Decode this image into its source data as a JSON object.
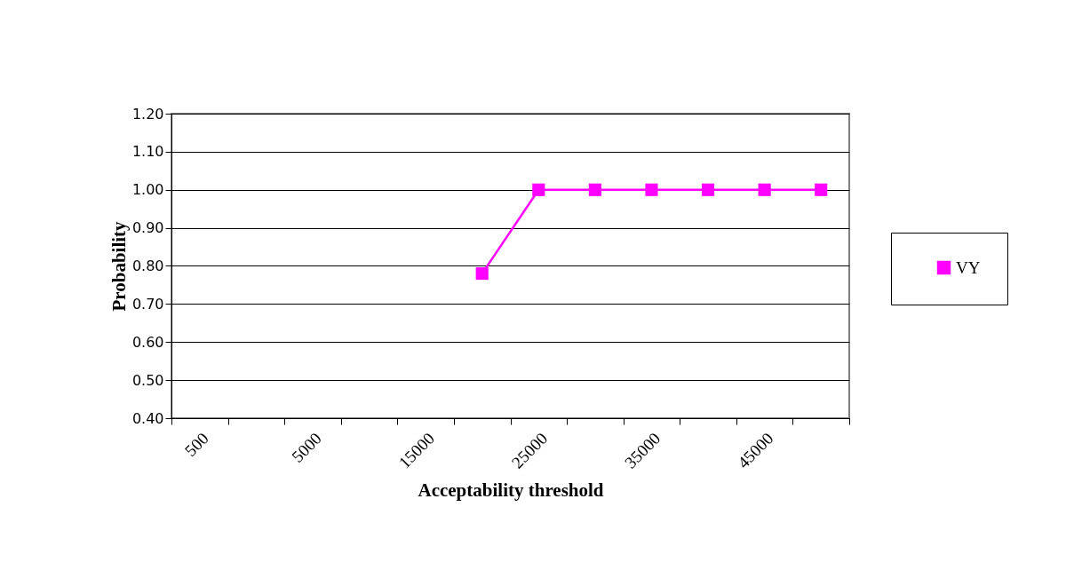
{
  "chart_data": {
    "type": "line",
    "xlabel": "Acceptability threshold",
    "ylabel": "Probability",
    "categories": [
      "500",
      null,
      "5000",
      null,
      "15000",
      null,
      "25000",
      null,
      "35000",
      null,
      "45000",
      null
    ],
    "series": [
      {
        "name": "VY",
        "color": "#ff00ff",
        "values": [
          null,
          null,
          null,
          null,
          null,
          0.78,
          1.0,
          1.0,
          1.0,
          1.0,
          1.0,
          1.0
        ]
      }
    ],
    "ylim": [
      0.4,
      1.2
    ],
    "yticks": [
      {
        "value": 0.4,
        "label": "0.40"
      },
      {
        "value": 0.5,
        "label": "0.50"
      },
      {
        "value": 0.6,
        "label": "0.60"
      },
      {
        "value": 0.7,
        "label": "0.70"
      },
      {
        "value": 0.8,
        "label": "0.80"
      },
      {
        "value": 0.9,
        "label": "0.90"
      },
      {
        "value": 1.0,
        "label": "1.00"
      },
      {
        "value": 1.1,
        "label": "1.10"
      },
      {
        "value": 1.2,
        "label": "1.20"
      }
    ],
    "grid": "y",
    "legend": "right",
    "marker": "square",
    "line_style": "solid"
  }
}
